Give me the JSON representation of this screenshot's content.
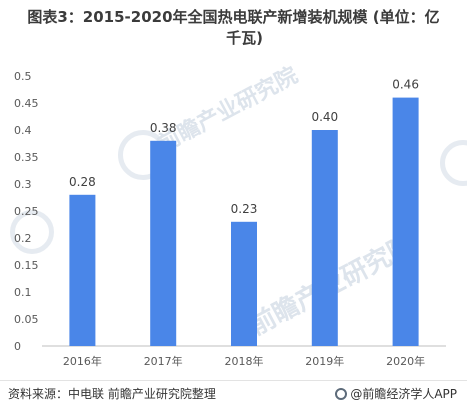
{
  "title_line_1": "图表3：2015-2020年全国热电联产新增装机规模 (单位：亿",
  "title_line_2": "千瓦)",
  "watermark_text": "前瞻产业研究院",
  "footer": {
    "source": "资料来源：中电联 前瞻产业研究院整理",
    "brand": "@前瞻经济学人APP"
  },
  "colors": {
    "bar": "#4a86e8",
    "axis": "#bfbfbf"
  },
  "chart_data": {
    "type": "bar",
    "title": "图表3：2015-2020年全国热电联产新增装机规模 (单位：亿千瓦)",
    "categories": [
      "2016年",
      "2017年",
      "2018年",
      "2019年",
      "2020年"
    ],
    "values": [
      0.28,
      0.38,
      0.23,
      0.4,
      0.46
    ],
    "data_labels": [
      "0.28",
      "0.38",
      "0.23",
      "0.40",
      "0.46"
    ],
    "y_ticks": [
      "0",
      "0.05",
      "0.1",
      "0.15",
      "0.2",
      "0.25",
      "0.3",
      "0.35",
      "0.4",
      "0.45",
      "0.5"
    ],
    "ylim": [
      0,
      0.5
    ],
    "xlabel": "",
    "ylabel": "",
    "grid": false,
    "legend": "none"
  }
}
